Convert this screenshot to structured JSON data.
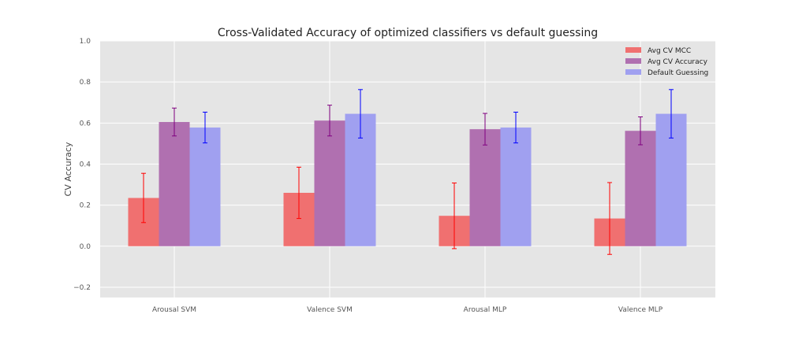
{
  "chart_data": {
    "type": "bar",
    "title": "Cross-Validated Accuracy of optimized classifiers vs default guessing",
    "xlabel": "",
    "ylabel": "CV Accuracy",
    "ylim": [
      -0.25,
      1.0
    ],
    "yticks": [
      -0.2,
      0.0,
      0.2,
      0.4,
      0.6,
      0.8,
      1.0
    ],
    "ytick_labels": [
      "−0.2",
      "0.0",
      "0.2",
      "0.4",
      "0.6",
      "0.8",
      "1.0"
    ],
    "grid": true,
    "legend_position": "top-right",
    "categories": [
      "Arousal SVM",
      "Valence SVM",
      "Arousal MLP",
      "Valence MLP"
    ],
    "series": [
      {
        "name": "Avg CV MCC",
        "values": [
          0.235,
          0.26,
          0.148,
          0.135
        ],
        "errors": [
          0.12,
          0.125,
          0.16,
          0.175
        ],
        "color": "#f07070",
        "error_color": "#ff0000"
      },
      {
        "name": "Avg CV Accuracy",
        "values": [
          0.605,
          0.612,
          0.57,
          0.562
        ],
        "errors": [
          0.068,
          0.075,
          0.077,
          0.068
        ],
        "color": "#b070b0",
        "error_color": "#800080"
      },
      {
        "name": "Default Guessing",
        "values": [
          0.578,
          0.645,
          0.578,
          0.645
        ],
        "errors": [
          0.075,
          0.118,
          0.075,
          0.118
        ],
        "color": "#a0a0f0",
        "error_color": "#0000ff"
      }
    ]
  }
}
